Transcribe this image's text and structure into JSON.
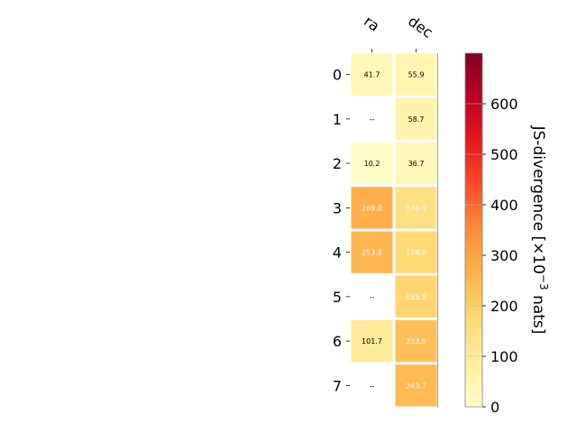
{
  "chart_data": {
    "type": "heatmap",
    "columns": [
      "ra",
      "dec"
    ],
    "rows": [
      "0",
      "1",
      "2",
      "3",
      "4",
      "5",
      "6",
      "7"
    ],
    "values": [
      [
        41.7,
        55.9
      ],
      [
        null,
        58.7
      ],
      [
        10.2,
        36.7
      ],
      [
        269.0,
        146.9
      ],
      [
        253.8,
        176.0
      ],
      [
        null,
        185.0
      ],
      [
        101.7,
        233.9
      ],
      [
        null,
        243.7
      ]
    ],
    "cell_labels": [
      [
        "41.7",
        "55.9"
      ],
      [
        "--",
        "58.7"
      ],
      [
        "10.2",
        "36.7"
      ],
      [
        "269.0",
        "146.9"
      ],
      [
        "253.8",
        "176.0"
      ],
      [
        "--",
        "185.0"
      ],
      [
        "101.7",
        "233.9"
      ],
      [
        "--",
        "243.7"
      ]
    ],
    "colorbar": {
      "label": "JS-divergence [×10",
      "label_exp": "−3",
      "label_suffix": " nats]",
      "range": [
        0,
        700
      ],
      "ticks": [
        "0",
        "100",
        "200",
        "300",
        "400",
        "500",
        "600"
      ],
      "tick_values": [
        0,
        100,
        200,
        300,
        400,
        500,
        600
      ],
      "colormap": "YlOrRd"
    }
  }
}
